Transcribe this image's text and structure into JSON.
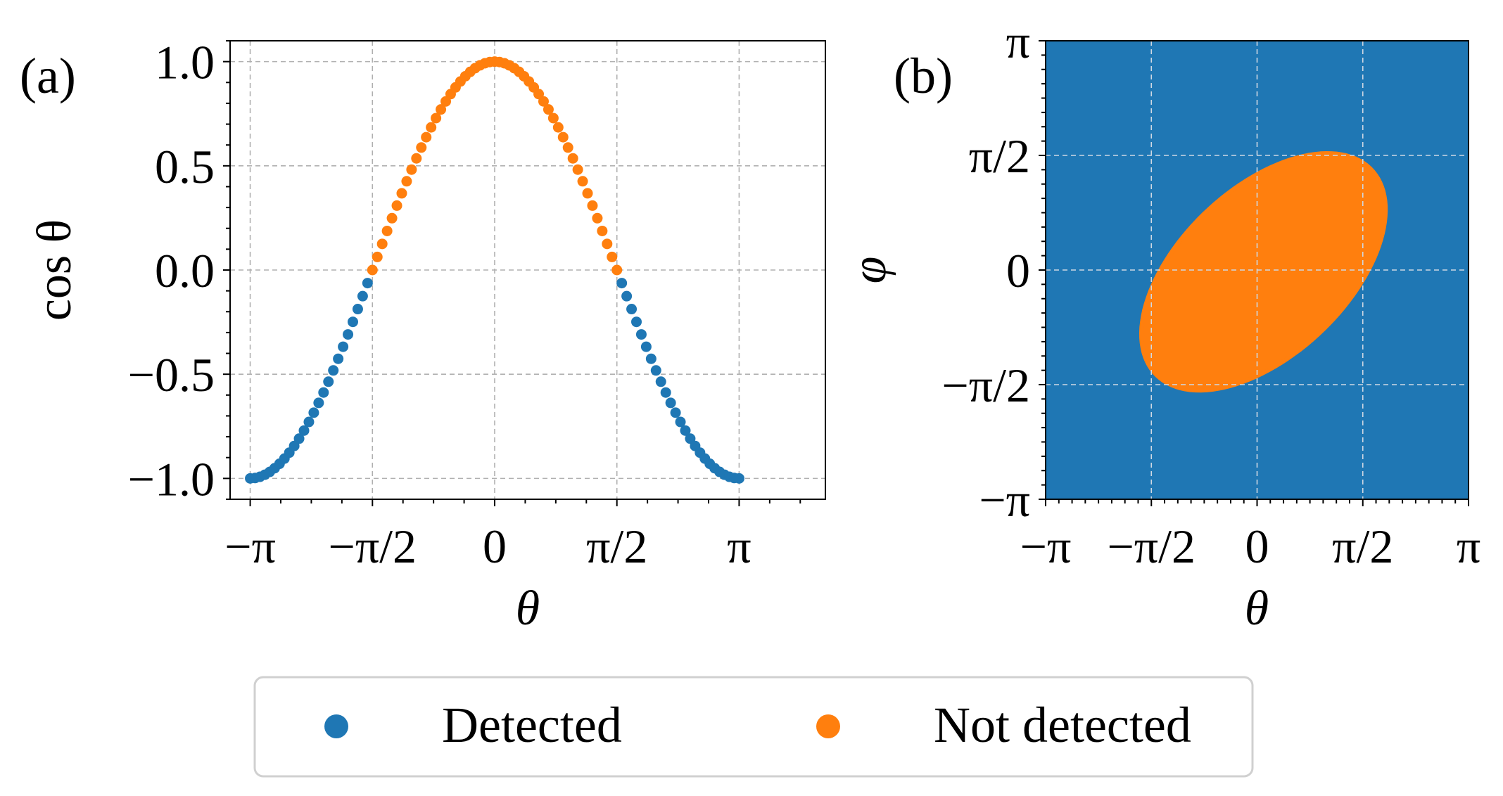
{
  "colors": {
    "detected": "#1f77b4",
    "not_detected": "#ff7f0e",
    "background": "#ffffff"
  },
  "chart_data": [
    {
      "type": "scatter",
      "panel_label": "(a)",
      "xlabel": "θ",
      "ylabel": "cos θ",
      "xlim": [
        -3.4,
        4.25
      ],
      "ylim": [
        -1.1,
        1.1
      ],
      "x_range": [
        -3.14159,
        3.14159
      ],
      "n_points": 101,
      "function": "cos(theta)",
      "detected_rule": "cos(theta) < 0",
      "xticks": [
        -3.14159,
        -1.5708,
        0,
        1.5708,
        3.14159
      ],
      "xtick_labels": [
        "−π",
        "−π/2",
        "0",
        "π/2",
        "π"
      ],
      "yticks": [
        -1.0,
        -0.5,
        0.0,
        0.5,
        1.0
      ],
      "ytick_labels": [
        "−1.0",
        "−0.5",
        "0.0",
        "0.5",
        "1.0"
      ],
      "grid": true
    },
    {
      "type": "heatmap",
      "panel_label": "(b)",
      "xlabel": "θ",
      "ylabel": "φ",
      "xlim": [
        -3.14159,
        3.14159
      ],
      "ylim": [
        -3.14159,
        3.14159
      ],
      "region": {
        "label": "Not detected",
        "shape": "tilted ellipse",
        "center": [
          0.1,
          -0.06
        ],
        "theta_extent": [
          -1.72,
          1.91
        ],
        "phi_extent": [
          -1.65,
          1.6
        ],
        "tilt_deg": 38
      },
      "xticks": [
        -3.14159,
        -1.5708,
        0,
        1.5708,
        3.14159
      ],
      "xtick_labels": [
        "−π",
        "−π/2",
        "0",
        "π/2",
        "π"
      ],
      "yticks": [
        -3.14159,
        -1.5708,
        0,
        1.5708,
        3.14159
      ],
      "ytick_labels": [
        "−π",
        "−π/2",
        "0",
        "π/2",
        "π"
      ],
      "grid": true
    }
  ],
  "legend": {
    "items": [
      {
        "label": "Detected",
        "color": "#1f77b4"
      },
      {
        "label": "Not detected",
        "color": "#ff7f0e"
      }
    ],
    "position": "bottom-center"
  }
}
